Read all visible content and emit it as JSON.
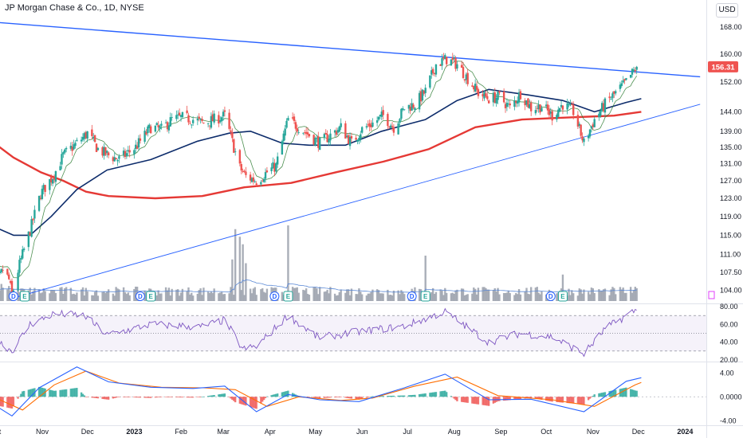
{
  "header": {
    "title": "JP Morgan Chase & Co., 1D, NYSE",
    "currency_label": "USD"
  },
  "colors": {
    "up": "#26a69a",
    "down": "#ef5350",
    "ma200": "#e53935",
    "ma50": "#0d2c6b",
    "ma_fast": "#2e7d32",
    "trendline": "#2962ff",
    "rsi": "#7e57c2",
    "macd": "#2962ff",
    "signal": "#ff6d00",
    "volume": "#9aa0ab",
    "volume_ma": "#5c8ad6",
    "last_price": "#ef5350"
  },
  "chart_data": [
    {
      "type": "candlestick",
      "title": "JP Morgan Chase & Co., 1D, NYSE",
      "y_axis_ticks": [
        "168.00",
        "160.00",
        "152.00",
        "144.00",
        "139.00",
        "135.00",
        "131.00",
        "127.00",
        "123.00",
        "119.00",
        "115.00",
        "111.00",
        "107.50",
        "104.00"
      ],
      "ylim": [
        102,
        172
      ],
      "y_scale": "log",
      "last_price": "156.31",
      "x_axis_ticks": [
        "Oct",
        "Nov",
        "Dec",
        "2023",
        "Feb",
        "Mar",
        "Apr",
        "May",
        "Jun",
        "Jul",
        "Aug",
        "Sep",
        "Oct",
        "Nov",
        "Dec",
        "2024"
      ],
      "x_axis_bold": [
        "2023",
        "2024"
      ],
      "close_path": [
        [
          "2022-09-26",
          107.5
        ],
        [
          "2022-09-29",
          110.5
        ],
        [
          "2022-10-04",
          106.0
        ],
        [
          "2022-10-07",
          108.0
        ],
        [
          "2022-10-11",
          106.0
        ],
        [
          "2022-10-13",
          103.0
        ],
        [
          "2022-10-18",
          109.0
        ],
        [
          "2022-10-25",
          116.0
        ],
        [
          "2022-11-01",
          124.0
        ],
        [
          "2022-11-10",
          128.5
        ],
        [
          "2022-11-16",
          133.0
        ],
        [
          "2022-11-28",
          137.0
        ],
        [
          "2022-12-02",
          138.5
        ],
        [
          "2022-12-09",
          134.5
        ],
        [
          "2022-12-16",
          133.0
        ],
        [
          "2022-12-23",
          132.0
        ],
        [
          "2023-01-03",
          135.0
        ],
        [
          "2023-01-13",
          140.0
        ],
        [
          "2023-01-20",
          139.5
        ],
        [
          "2023-01-27",
          142.0
        ],
        [
          "2023-02-03",
          142.5
        ],
        [
          "2023-02-10",
          142.0
        ],
        [
          "2023-02-17",
          141.0
        ],
        [
          "2023-02-24",
          142.0
        ],
        [
          "2023-03-03",
          143.0
        ],
        [
          "2023-03-09",
          135.0
        ],
        [
          "2023-03-13",
          130.0
        ],
        [
          "2023-03-17",
          128.0
        ],
        [
          "2023-03-24",
          127.0
        ],
        [
          "2023-03-31",
          129.0
        ],
        [
          "2023-04-06",
          130.5
        ],
        [
          "2023-04-14",
          142.0
        ],
        [
          "2023-04-21",
          140.0
        ],
        [
          "2023-04-28",
          138.0
        ],
        [
          "2023-05-05",
          136.0
        ],
        [
          "2023-05-12",
          138.0
        ],
        [
          "2023-05-19",
          140.0
        ],
        [
          "2023-05-26",
          136.0
        ],
        [
          "2023-06-02",
          139.5
        ],
        [
          "2023-06-09",
          141.0
        ],
        [
          "2023-06-16",
          143.0
        ],
        [
          "2023-06-23",
          140.0
        ],
        [
          "2023-06-30",
          145.0
        ],
        [
          "2023-07-07",
          146.0
        ],
        [
          "2023-07-14",
          149.5
        ],
        [
          "2023-07-21",
          157.0
        ],
        [
          "2023-07-28",
          158.5
        ],
        [
          "2023-08-04",
          157.0
        ],
        [
          "2023-08-11",
          153.0
        ],
        [
          "2023-08-18",
          149.0
        ],
        [
          "2023-08-25",
          147.5
        ],
        [
          "2023-09-01",
          148.0
        ],
        [
          "2023-09-08",
          145.0
        ],
        [
          "2023-09-15",
          149.0
        ],
        [
          "2023-09-22",
          145.0
        ],
        [
          "2023-09-29",
          145.5
        ],
        [
          "2023-10-06",
          143.0
        ],
        [
          "2023-10-13",
          146.0
        ],
        [
          "2023-10-20",
          144.0
        ],
        [
          "2023-10-27",
          136.0
        ],
        [
          "2023-11-03",
          142.0
        ],
        [
          "2023-11-10",
          146.0
        ],
        [
          "2023-11-17",
          149.0
        ],
        [
          "2023-11-24",
          152.0
        ],
        [
          "2023-12-01",
          156.31
        ]
      ],
      "ma200_path": [
        [
          "2022-09-26",
          137.5
        ],
        [
          "2022-10-14",
          132.5
        ],
        [
          "2022-11-01",
          129.0
        ],
        [
          "2022-11-16",
          127.0
        ],
        [
          "2022-12-01",
          124.5
        ],
        [
          "2022-12-16",
          123.5
        ],
        [
          "2023-01-16",
          123.0
        ],
        [
          "2023-02-16",
          123.5
        ],
        [
          "2023-03-16",
          125.5
        ],
        [
          "2023-04-16",
          126.5
        ],
        [
          "2023-05-16",
          129.0
        ],
        [
          "2023-06-16",
          131.5
        ],
        [
          "2023-07-16",
          134.5
        ],
        [
          "2023-08-16",
          140.0
        ],
        [
          "2023-09-16",
          142.0
        ],
        [
          "2023-10-16",
          142.5
        ],
        [
          "2023-11-16",
          143.0
        ],
        [
          "2023-12-04",
          144.0
        ]
      ],
      "ma50_path": [
        [
          "2022-09-26",
          117.5
        ],
        [
          "2022-10-14",
          115.0
        ],
        [
          "2022-10-25",
          115.0
        ],
        [
          "2022-11-08",
          119.0
        ],
        [
          "2022-11-25",
          125.0
        ],
        [
          "2022-12-15",
          129.5
        ],
        [
          "2023-01-13",
          132.0
        ],
        [
          "2023-02-13",
          136.5
        ],
        [
          "2023-03-06",
          138.5
        ],
        [
          "2023-03-20",
          139.0
        ],
        [
          "2023-04-10",
          136.0
        ],
        [
          "2023-04-28",
          135.5
        ],
        [
          "2023-05-22",
          135.5
        ],
        [
          "2023-06-15",
          139.0
        ],
        [
          "2023-07-14",
          142.0
        ],
        [
          "2023-08-04",
          147.0
        ],
        [
          "2023-08-25",
          150.0
        ],
        [
          "2023-09-20",
          148.5
        ],
        [
          "2023-10-13",
          147.0
        ],
        [
          "2023-11-03",
          144.0
        ],
        [
          "2023-11-24",
          146.5
        ],
        [
          "2023-12-04",
          147.5
        ]
      ],
      "trendline_upper": [
        [
          "2022-09-19",
          170.0
        ],
        [
          "2024-01-12",
          153.5
        ]
      ],
      "trendline_lower": [
        [
          "2022-10-13",
          102.5
        ],
        [
          "2024-01-12",
          146.0
        ]
      ],
      "events": [
        {
          "date": "2022-10-14",
          "label": "D"
        },
        {
          "date": "2022-10-14",
          "label": "E"
        },
        {
          "date": "2023-01-06",
          "label": "D"
        },
        {
          "date": "2023-01-13",
          "label": "E"
        },
        {
          "date": "2023-04-05",
          "label": "D"
        },
        {
          "date": "2023-04-14",
          "label": "E"
        },
        {
          "date": "2023-07-05",
          "label": "D"
        },
        {
          "date": "2023-07-14",
          "label": "E"
        },
        {
          "date": "2023-10-05",
          "label": "D"
        },
        {
          "date": "2023-10-13",
          "label": "E"
        }
      ]
    },
    {
      "type": "bar",
      "name": "Volume",
      "spikes": [
        [
          "2023-03-08",
          0.55
        ],
        [
          "2023-03-10",
          0.95
        ],
        [
          "2023-03-13",
          0.85
        ],
        [
          "2023-03-15",
          0.75
        ],
        [
          "2023-03-17",
          0.5
        ],
        [
          "2023-04-14",
          1.0
        ],
        [
          "2023-07-14",
          0.6
        ],
        [
          "2023-10-13",
          0.35
        ]
      ]
    },
    {
      "type": "line",
      "name": "RSI",
      "y_axis_ticks": [
        "80.00",
        "60.00",
        "40.00",
        "20.00"
      ],
      "ylim": [
        20,
        80
      ],
      "bands": [
        70,
        50,
        30
      ],
      "path": [
        [
          "2022-09-26",
          50
        ],
        [
          "2022-10-05",
          40
        ],
        [
          "2022-10-13",
          30
        ],
        [
          "2022-10-25",
          60
        ],
        [
          "2022-11-10",
          72
        ],
        [
          "2022-11-30",
          70
        ],
        [
          "2022-12-15",
          48
        ],
        [
          "2023-01-13",
          60
        ],
        [
          "2023-02-15",
          57
        ],
        [
          "2023-03-03",
          65
        ],
        [
          "2023-03-15",
          32
        ],
        [
          "2023-03-24",
          35
        ],
        [
          "2023-04-14",
          70
        ],
        [
          "2023-05-04",
          45
        ],
        [
          "2023-06-01",
          52
        ],
        [
          "2023-06-30",
          58
        ],
        [
          "2023-07-27",
          74
        ],
        [
          "2023-08-25",
          40
        ],
        [
          "2023-09-15",
          50
        ],
        [
          "2023-10-06",
          46
        ],
        [
          "2023-10-27",
          27
        ],
        [
          "2023-11-10",
          55
        ],
        [
          "2023-11-30",
          76
        ],
        [
          "2023-12-04",
          70
        ]
      ]
    },
    {
      "type": "line",
      "name": "MACD",
      "y_axis_ticks": [
        "4.00",
        "0.0000",
        "-4.00"
      ],
      "ylim": [
        -4.5,
        5.5
      ],
      "macd_path": [
        [
          "2022-09-26",
          -0.5
        ],
        [
          "2022-10-13",
          -3.2
        ],
        [
          "2022-10-31",
          1.5
        ],
        [
          "2022-11-25",
          5.0
        ],
        [
          "2022-12-16",
          2.5
        ],
        [
          "2023-01-13",
          1.6
        ],
        [
          "2023-02-10",
          1.4
        ],
        [
          "2023-03-03",
          1.8
        ],
        [
          "2023-03-24",
          -2.5
        ],
        [
          "2023-04-14",
          0.4
        ],
        [
          "2023-05-05",
          -0.5
        ],
        [
          "2023-05-31",
          -0.8
        ],
        [
          "2023-06-30",
          1.5
        ],
        [
          "2023-07-27",
          3.8
        ],
        [
          "2023-08-25",
          -0.5
        ],
        [
          "2023-09-22",
          -0.4
        ],
        [
          "2023-10-27",
          -2.5
        ],
        [
          "2023-11-24",
          2.6
        ],
        [
          "2023-12-04",
          3.2
        ]
      ],
      "signal_path": [
        [
          "2022-09-26",
          0.5
        ],
        [
          "2022-10-20",
          -2.2
        ],
        [
          "2022-11-10",
          2.0
        ],
        [
          "2022-12-01",
          4.3
        ],
        [
          "2022-12-23",
          2.3
        ],
        [
          "2023-01-20",
          1.6
        ],
        [
          "2023-02-17",
          1.5
        ],
        [
          "2023-03-10",
          1.2
        ],
        [
          "2023-03-31",
          -1.6
        ],
        [
          "2023-04-21",
          0.0
        ],
        [
          "2023-05-19",
          -0.6
        ],
        [
          "2023-06-09",
          -0.2
        ],
        [
          "2023-07-07",
          1.8
        ],
        [
          "2023-08-04",
          3.3
        ],
        [
          "2023-08-31",
          0.2
        ],
        [
          "2023-10-06",
          -0.5
        ],
        [
          "2023-11-03",
          -1.6
        ],
        [
          "2023-11-30",
          2.0
        ],
        [
          "2023-12-04",
          2.4
        ]
      ]
    }
  ]
}
